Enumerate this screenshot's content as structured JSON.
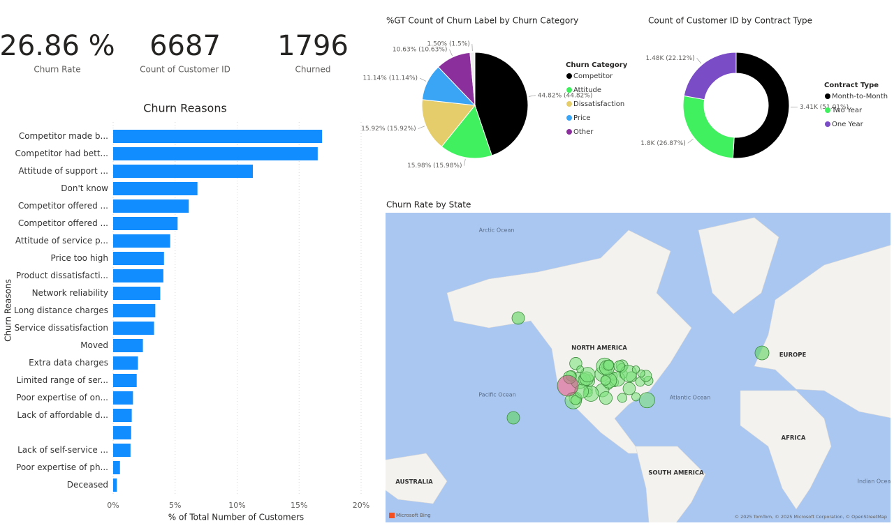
{
  "cards": [
    {
      "value": "26.86 %",
      "label": "Churn Rate"
    },
    {
      "value": "6687",
      "label": "Count of Customer ID"
    },
    {
      "value": "1796",
      "label": "Churned"
    }
  ],
  "chart_data": [
    {
      "type": "bar",
      "orientation": "horizontal",
      "title": "Churn Reasons",
      "xlabel": "% of Total Number of Customers",
      "ylabel": "Churn Reasons",
      "categories": [
        "Competitor made b...",
        "Competitor had bett...",
        "Attitude of support ...",
        "Don't know",
        "Competitor offered ...",
        "Competitor offered ...",
        "Attitude of service p...",
        "Price too high",
        "Product dissatisfacti...",
        "Network reliability",
        "Long distance charges",
        "Service dissatisfaction",
        "Moved",
        "Extra data charges",
        "Limited range of ser...",
        "Poor expertise of on...",
        "Lack of affordable d...",
        null,
        "Lack of self-service ...",
        "Poor expertise of ph...",
        "Deceased"
      ],
      "values": [
        16.85,
        16.5,
        11.27,
        6.8,
        6.1,
        5.2,
        4.6,
        4.1,
        4.05,
        3.8,
        3.4,
        3.3,
        2.4,
        2.0,
        1.9,
        1.6,
        1.5,
        1.45,
        1.4,
        0.55,
        0.3
      ],
      "color": "#118dff",
      "xlim": [
        0,
        20
      ],
      "xticks": [
        {
          "value": 0,
          "label": "0%"
        },
        {
          "value": 5,
          "label": "5%"
        },
        {
          "value": 10,
          "label": "10%"
        },
        {
          "value": 15,
          "label": "15%"
        },
        {
          "value": 20,
          "label": "20%"
        }
      ],
      "grid": true
    },
    {
      "type": "pie",
      "title": "%GT Count of Churn Label by Churn Category",
      "legend_title": "Churn Category",
      "categories": [
        "Competitor",
        "Attitude",
        "Dissatisfaction",
        "Price",
        "Other",
        null
      ],
      "values": [
        44.82,
        15.98,
        15.92,
        11.14,
        10.63,
        1.5
      ],
      "value_labels": [
        "44.82% (44.82%)",
        "15.98% (15.98%)",
        "15.92% (15.92%)",
        "11.14% (11.14%)",
        "10.63% (10.63%)",
        "1.50% (1.5%)"
      ],
      "colors": [
        "#000000",
        "#41f05f",
        "#e6cd6b",
        "#3ba5f5",
        "#8b2f9c",
        "#eeeeee"
      ]
    },
    {
      "type": "donut",
      "title": "Count of Customer ID by Contract Type",
      "legend_title": "Contract Type",
      "categories": [
        "Month-to-Month",
        "Two Year",
        "One Year"
      ],
      "values": [
        3410,
        1800,
        1480
      ],
      "value_labels": [
        "3.41K (51.01%)",
        "1.8K (26.87%)",
        "1.48K (22.12%)"
      ],
      "colors": [
        "#000000",
        "#41f05f",
        "#7a4cc6"
      ]
    }
  ],
  "map": {
    "title": "Churn Rate by State",
    "labels": [
      "Arctic Ocean",
      "NORTH AMERICA",
      "EUROPE",
      "Pacific Ocean",
      "Atlantic Ocean",
      "AFRICA",
      "SOUTH AMERICA",
      "AUSTRALIA",
      "Indian Ocean"
    ],
    "logo": "Microsoft Bing",
    "attribution": "© 2025 TomTom, © 2025 Microsoft Corporation, © OpenStreetMap"
  }
}
